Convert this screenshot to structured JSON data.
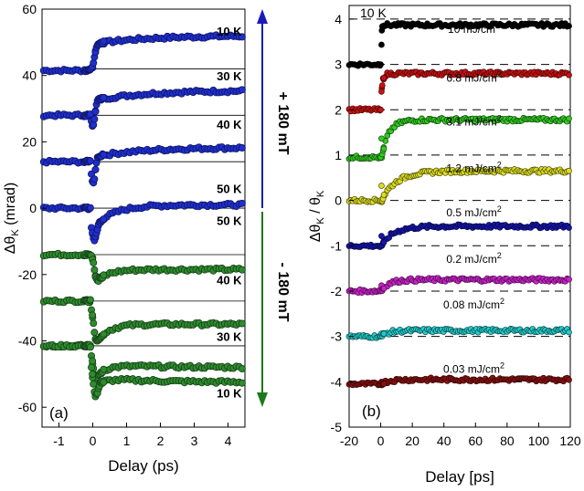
{
  "chart_data": [
    {
      "id": "a",
      "type": "scatter",
      "panel_label": "(a)",
      "xlabel": "Delay (ps)",
      "ylabel_main": "Δθ",
      "ylabel_sub": "K",
      "ylabel_unit": " (mrad)",
      "xlim": [
        -1.5,
        4.5
      ],
      "ylim": [
        -66,
        60
      ],
      "xticks": [
        -1,
        0,
        1,
        2,
        3,
        4
      ],
      "yticks": [
        -60,
        -40,
        -20,
        0,
        20,
        40,
        60
      ],
      "xticklabels": [
        "-1",
        "0",
        "1",
        "2",
        "3",
        "4"
      ],
      "yticklabels": [
        "-60",
        "-40",
        "-20",
        "0",
        "20",
        "40",
        "60"
      ],
      "field_up": {
        "label": "+ 180 mT",
        "color": "#1a1ab8"
      },
      "field_down": {
        "label": "- 180 mT",
        "color": "#1b7a1b"
      },
      "series": [
        {
          "name": "10 K",
          "field": "+180 mT",
          "color": "#1f2fd0",
          "baseline": 41.5,
          "dip": 0,
          "dip_w": 0.06,
          "jump": 8.0,
          "rec_amp": 0,
          "rec_tau": 1,
          "slow": 2.5,
          "slow_tau": 1.5,
          "guide_y": 42,
          "label_x": 3.55,
          "label_y": 52
        },
        {
          "name": "30 K",
          "field": "+180 mT",
          "color": "#1f2fd0",
          "baseline": 28,
          "dip": -4.5,
          "dip_w": 0.07,
          "jump": 4.5,
          "rec_amp": 0,
          "rec_tau": 1,
          "slow": 3.0,
          "slow_tau": 1.5,
          "guide_y": 28,
          "label_x": 3.55,
          "label_y": 38.5
        },
        {
          "name": "40 K",
          "field": "+180 mT",
          "color": "#1f2fd0",
          "baseline": 14,
          "dip": -6.5,
          "dip_w": 0.08,
          "jump": 1.5,
          "rec_amp": 0,
          "rec_tau": 1,
          "slow": 2.8,
          "slow_tau": 1.4,
          "guide_y": 14,
          "label_x": 3.55,
          "label_y": 24
        },
        {
          "name": "50 K",
          "field": "+180 mT",
          "color": "#1f2fd0",
          "baseline": 0,
          "dip": -7.5,
          "dip_w": 0.1,
          "jump": -5.5,
          "rec_amp": 0,
          "rec_tau": 1,
          "slow": 6.5,
          "slow_tau": 0.6,
          "guide_y": 0,
          "label_x": 3.55,
          "label_y": 4.5
        },
        {
          "name": "50 K",
          "field": "-180 mT",
          "color": "#2e8b2e",
          "baseline": -14,
          "dip": 0,
          "dip_w": 0.08,
          "jump": -9,
          "rec_amp": 4.5,
          "rec_tau": 0.35,
          "slow": 0,
          "slow_tau": 1,
          "guide_y": -14,
          "label_x": 3.55,
          "label_y": -5
        },
        {
          "name": "40 K",
          "field": "-180 mT",
          "color": "#2e8b2e",
          "baseline": -28,
          "dip": -3,
          "dip_w": 0.08,
          "jump": -13.5,
          "rec_amp": 6.5,
          "rec_tau": 0.35,
          "slow": 0,
          "slow_tau": 1,
          "guide_y": -28,
          "label_x": 3.55,
          "label_y": -23
        },
        {
          "name": "30 K",
          "field": "-180 mT",
          "color": "#2e8b2e",
          "baseline": -41.5,
          "dip": -4,
          "dip_w": 0.09,
          "jump": -10,
          "rec_amp": 4.5,
          "rec_tau": 0.3,
          "slow": -1,
          "slow_tau": 1.5,
          "guide_y": -41.5,
          "label_x": 3.55,
          "label_y": -40
        },
        {
          "name": "10 K",
          "field": "-180 mT",
          "color": "#2e8b2e",
          "baseline": -41.5,
          "dip": -8,
          "dip_w": 0.12,
          "jump": -12,
          "rec_amp": 2.5,
          "rec_tau": 0.3,
          "slow": -1.5,
          "slow_tau": 1.5,
          "guide_y": null,
          "label_x": 3.55,
          "label_y": -57
        }
      ]
    },
    {
      "id": "b",
      "type": "scatter",
      "panel_label": "(b)",
      "title": "10 K",
      "xlabel": "Delay [ps]",
      "ylabel_main": "Δθ",
      "ylabel_sub": "K",
      "ylabel_mid": " / θ",
      "ylabel_sub2": "K",
      "xlim": [
        -20,
        120
      ],
      "ylim": [
        -5,
        4.3
      ],
      "xticks": [
        -20,
        0,
        20,
        40,
        60,
        80,
        100,
        120
      ],
      "yticks": [
        -5,
        -4,
        -3,
        -2,
        -1,
        0,
        1,
        2,
        3,
        4
      ],
      "xticklabels": [
        "-20",
        "0",
        "20",
        "40",
        "60",
        "80",
        "100",
        "120"
      ],
      "yticklabels": [
        "-5",
        "-4",
        "-3",
        "-2",
        "-1",
        "0",
        "1",
        "2",
        "3",
        "4"
      ],
      "dashed_levels": [
        4,
        3,
        2,
        1,
        0,
        -1,
        -2,
        -3,
        -4
      ],
      "series": [
        {
          "name": "10 mJ/cm",
          "sup": "2",
          "color": "#000000",
          "baseline": 3.0,
          "after": 3.87,
          "spike": 0.0,
          "rise_tau": 0.3,
          "label_y": 3.49
        },
        {
          "name": "6.8 mJ/cm",
          "sup": "2",
          "color": "#cc1111",
          "baseline": 2.0,
          "after": 2.8,
          "spike": -0.25,
          "rise_tau": 0.5,
          "label_y": 2.42
        },
        {
          "name": "3.1 mJ/cm",
          "sup": "2",
          "color": "#33cc22",
          "baseline": 0.95,
          "after": 1.78,
          "spike": -0.2,
          "rise_tau": 5,
          "label_y": 1.45
        },
        {
          "name": "1.2 mJ/cm",
          "sup": "2",
          "color": "#dddd22",
          "baseline": 0.0,
          "after": 0.65,
          "spike": -0.1,
          "rise_tau": 10,
          "label_y": 0.43
        },
        {
          "name": "0.5 mJ/cm",
          "sup": "2",
          "color": "#1515b0",
          "baseline": -1.0,
          "after": -0.57,
          "spike": -0.1,
          "rise_tau": 8,
          "label_y": -0.55
        },
        {
          "name": "0.2 mJ/cm",
          "sup": "2",
          "color": "#cc22cc",
          "baseline": -2.0,
          "after": -1.75,
          "spike": 0,
          "rise_tau": 5,
          "label_y": -1.58
        },
        {
          "name": "0.08 mJ/cm",
          "sup": "2",
          "color": "#22cccc",
          "baseline": -3.0,
          "after": -2.87,
          "spike": 0,
          "rise_tau": 5,
          "label_y": -2.58
        },
        {
          "name": "0.03 mJ/cm",
          "sup": "2",
          "color": "#8b1010",
          "baseline": -4.05,
          "after": -3.95,
          "spike": 0,
          "rise_tau": 5,
          "label_y": -4.0
        }
      ]
    }
  ]
}
